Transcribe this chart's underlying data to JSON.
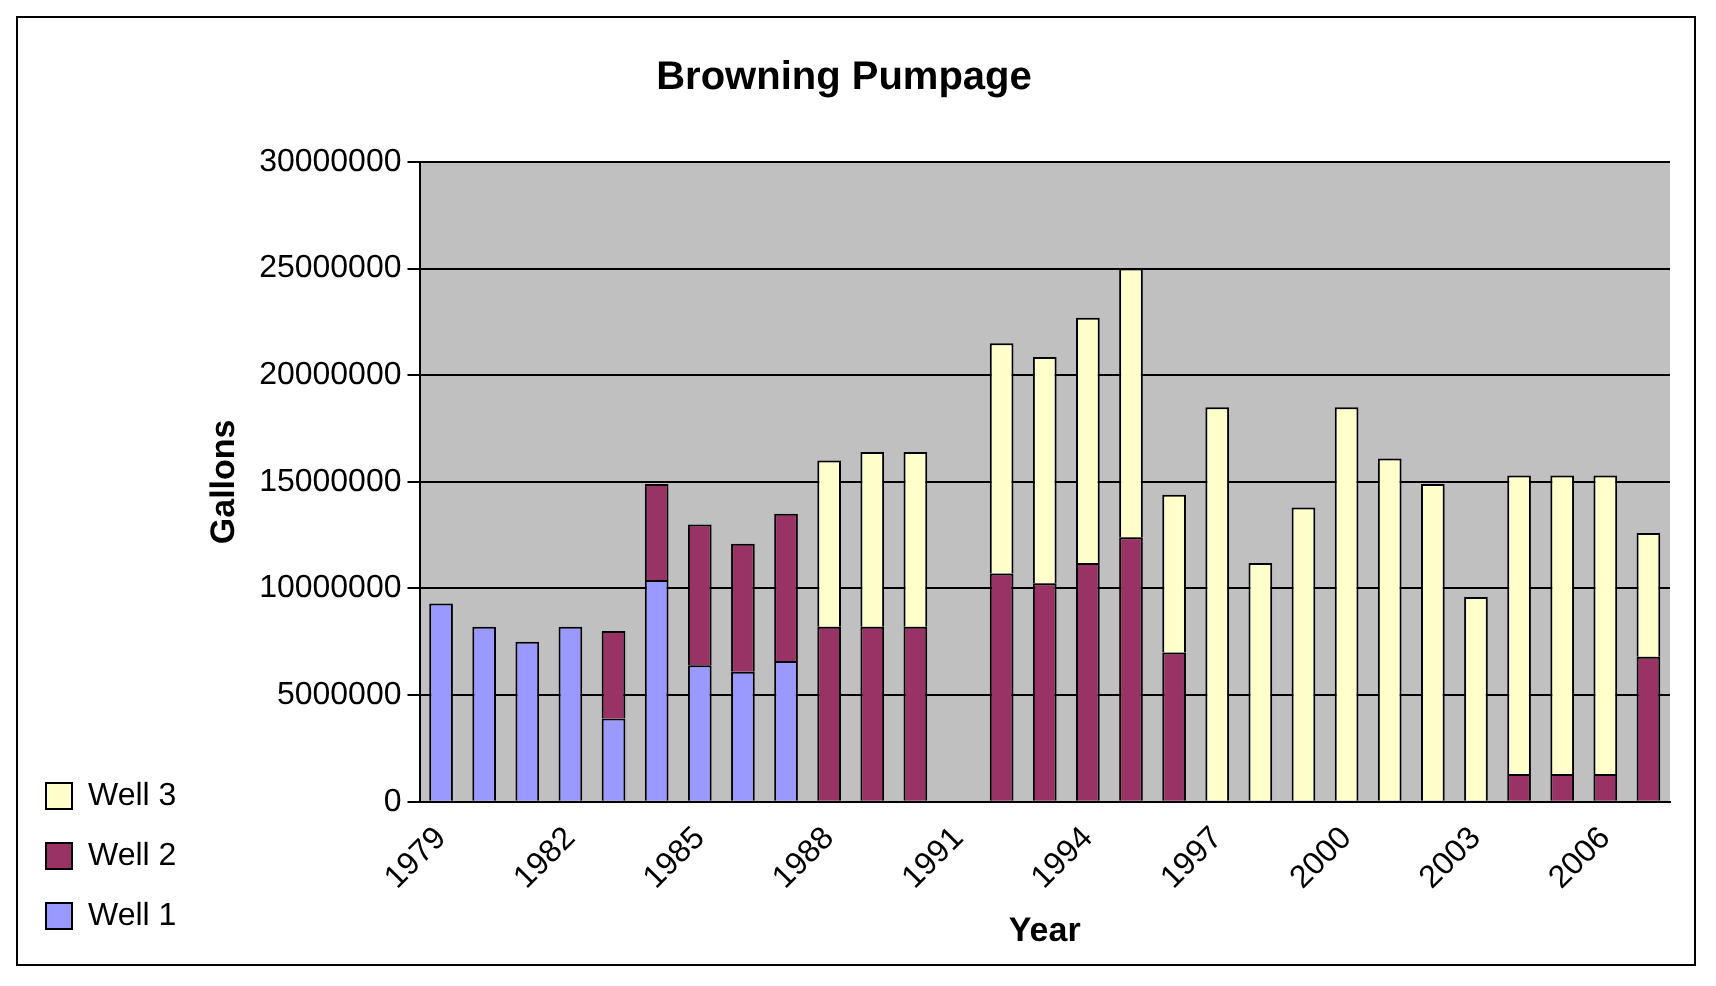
{
  "chart_data": {
    "type": "bar",
    "title": "Browning Pumpage",
    "xlabel": "Year",
    "ylabel": "Gallons",
    "categories": [
      "1979",
      null,
      null,
      "1982",
      null,
      null,
      "1985",
      null,
      null,
      "1988",
      null,
      null,
      "1991",
      null,
      null,
      "1994",
      null,
      null,
      "1997",
      null,
      null,
      "2000",
      null,
      null,
      "2003",
      null,
      null,
      "2006",
      null
    ],
    "stacked": true,
    "series": [
      {
        "name": "Well 1",
        "color": "#9999ff",
        "values": [
          9300000,
          8200000,
          7500000,
          8200000,
          3900000,
          10400000,
          6400000,
          6100000,
          6600000,
          null,
          null,
          null,
          null,
          null,
          null,
          null,
          null,
          null,
          null,
          null,
          null,
          null,
          null,
          null,
          null,
          null,
          null,
          null,
          null
        ]
      },
      {
        "name": "Well 2",
        "color": "#993366",
        "values": [
          null,
          null,
          null,
          null,
          4100000,
          4500000,
          6600000,
          6000000,
          6900000,
          8200000,
          8200000,
          8200000,
          null,
          10700000,
          10250000,
          11200000,
          12400000,
          7000000,
          null,
          null,
          null,
          null,
          null,
          null,
          null,
          1300000,
          1300000,
          1300000,
          6800000
        ]
      },
      {
        "name": "Well 3",
        "color": "#ffffcc",
        "values": [
          null,
          null,
          null,
          null,
          null,
          null,
          null,
          null,
          null,
          7800000,
          8200000,
          8200000,
          null,
          10800000,
          10600000,
          11500000,
          12600000,
          7400000,
          18500000,
          11200000,
          13800000,
          18500000,
          16100000,
          14900000,
          9600000,
          14000000,
          14000000,
          14000000,
          5800000
        ]
      }
    ],
    "ylim": [
      0,
      30000000
    ],
    "yticks": [
      0,
      5000000,
      10000000,
      15000000,
      20000000,
      25000000,
      30000000
    ],
    "grid": "y",
    "legend": "bottom left"
  }
}
